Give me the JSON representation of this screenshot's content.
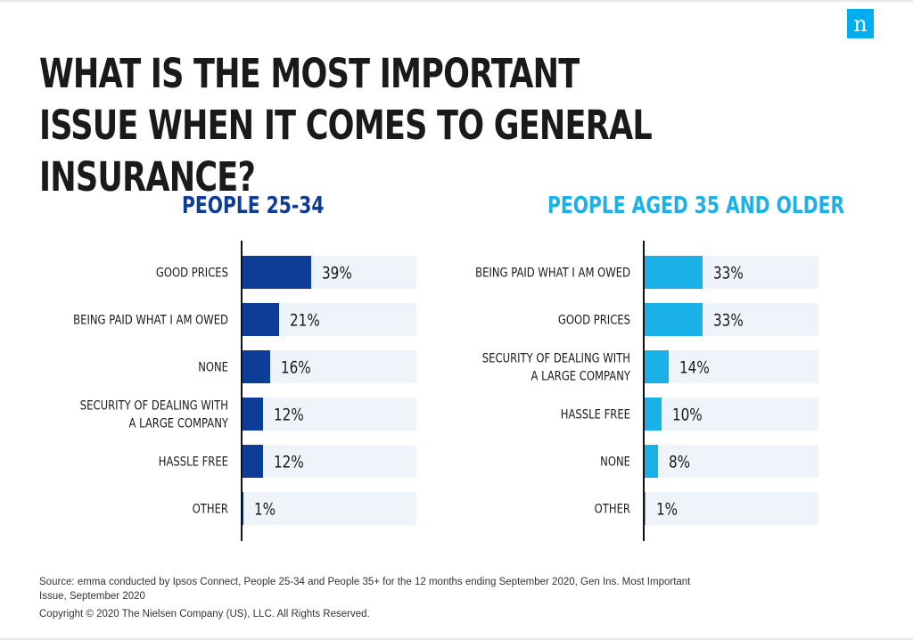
{
  "title": "WHAT IS THE MOST IMPORTANT ISSUE WHEN IT COMES TO GENERAL INSURANCE?",
  "logo_letter": "n",
  "chart_data": [
    {
      "type": "bar",
      "orientation": "horizontal",
      "title": "PEOPLE 25-34",
      "categories": [
        "GOOD PRICES",
        "BEING PAID WHAT I AM OWED",
        "NONE",
        "SECURITY OF DEALING WITH A LARGE COMPANY",
        "HASSLE FREE",
        "OTHER"
      ],
      "values": [
        39,
        21,
        16,
        12,
        12,
        1
      ],
      "labels": [
        "39%",
        "21%",
        "16%",
        "12%",
        "12%",
        "1%"
      ],
      "unit": "%",
      "xlim": [
        0,
        100
      ],
      "color": "#0d3d96",
      "track_color": "#eef4fa",
      "grid": false
    },
    {
      "type": "bar",
      "orientation": "horizontal",
      "title": "PEOPLE AGED 35 AND OLDER",
      "categories": [
        "BEING PAID WHAT I AM OWED",
        "GOOD PRICES",
        "SECURITY OF DEALING WITH A LARGE COMPANY",
        "HASSLE FREE",
        "NONE",
        "OTHER"
      ],
      "values": [
        33,
        33,
        14,
        10,
        8,
        1
      ],
      "labels": [
        "33%",
        "33%",
        "14%",
        "10%",
        "8%",
        "1%"
      ],
      "unit": "%",
      "xlim": [
        0,
        100
      ],
      "color": "#1ab0e8",
      "track_color": "#eef4fa",
      "grid": false
    }
  ],
  "source": "Source: emma conducted by Ipsos Connect, People 25-34 and People 35+ for the 12 months ending September 2020, Gen Ins. Most Important Issue, September 2020",
  "copyright": "Copyright © 2020 The Nielsen Company (US), LLC. All Rights Reserved."
}
